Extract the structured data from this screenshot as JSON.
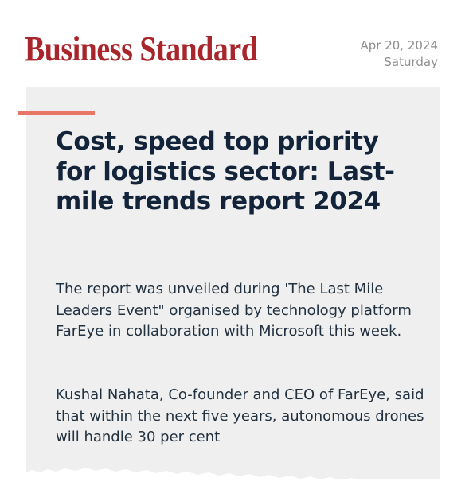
{
  "masthead": {
    "name": "Business Standard",
    "brand_color": "#a8262b"
  },
  "date": {
    "date": "Apr 20, 2024",
    "weekday": "Saturday"
  },
  "article": {
    "headline": "Cost, speed top priority for logistics sector: Last-mile trends report 2024",
    "paragraphs": [
      "The report was unveiled during 'The Last Mile Leaders Event\" organised by technology platform FarEye in collaboration with Microsoft this week.",
      "Kushal Nahata, Co-founder and CEO of FarEye, said that within the next five years, autonomous drones will handle 30 per cent"
    ],
    "accent_color": "#e97566",
    "card_color": "#efefef"
  }
}
